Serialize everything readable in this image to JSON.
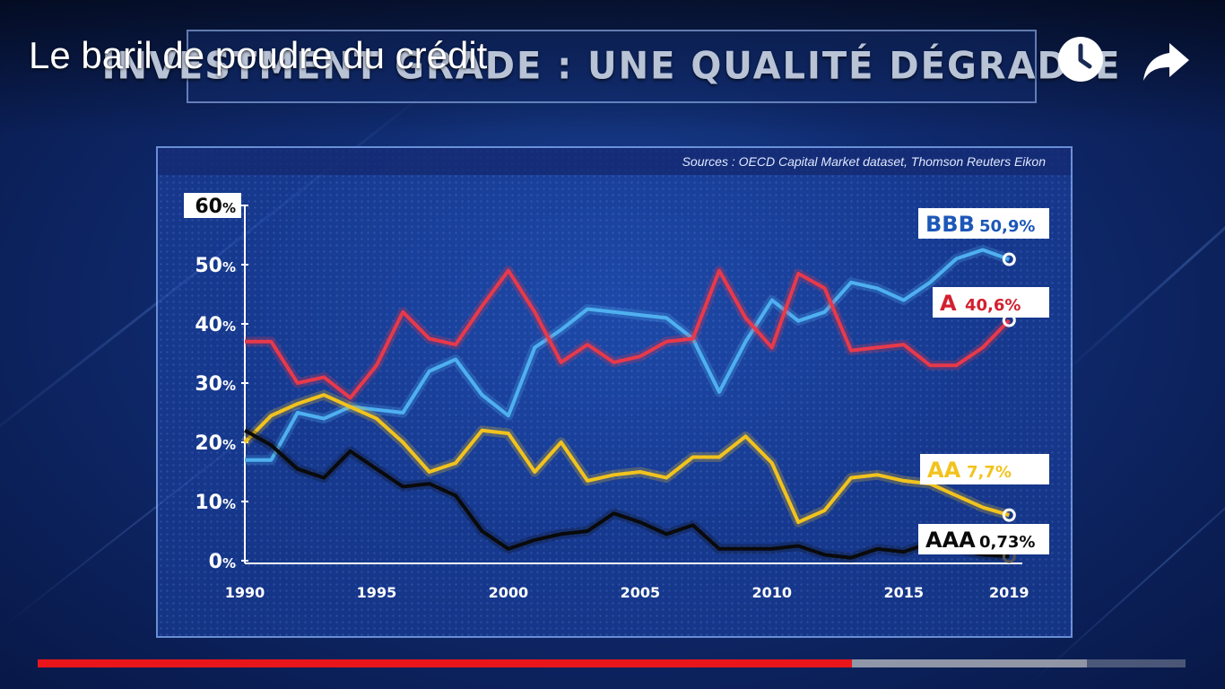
{
  "video": {
    "title": "Le baril de poudre du crédit",
    "watch_later_icon": "clock-icon",
    "share_icon": "share-arrow-icon",
    "progress_played": 0.709,
    "progress_buffered": 0.914
  },
  "banner": {
    "text": "INVESTMENT GRADE : UNE QUALITÉ DÉGRADÉE"
  },
  "chart_data": {
    "type": "line",
    "title": "",
    "sources": "Sources : OECD Capital Market dataset, Thomson Reuters Eikon",
    "xlabel": "",
    "ylabel": "",
    "xlim": [
      1990,
      2019.5
    ],
    "ylim": [
      0,
      60
    ],
    "x_ticks": [
      1990,
      1995,
      2000,
      2005,
      2010,
      2015,
      2019
    ],
    "y_ticks": [
      0,
      10,
      20,
      30,
      40,
      50,
      60
    ],
    "y_tick_unit": "%",
    "grid": false,
    "x": [
      1990,
      1991,
      1992,
      1993,
      1994,
      1995,
      1996,
      1997,
      1998,
      1999,
      2000,
      2001,
      2002,
      2003,
      2004,
      2005,
      2006,
      2007,
      2008,
      2009,
      2010,
      2011,
      2012,
      2013,
      2014,
      2015,
      2016,
      2017,
      2018,
      2019
    ],
    "series": [
      {
        "name": "BBB",
        "label_value": "50,9%",
        "color": "#4fb0f0",
        "label_bg": "#ffffff",
        "label_color": "#1d57b8",
        "values": [
          17,
          17,
          25,
          24,
          26,
          25.5,
          25,
          32,
          34,
          28,
          24.5,
          36,
          39,
          42.5,
          42,
          41.5,
          41,
          37.5,
          28.5,
          37,
          44,
          40.5,
          42,
          47,
          46,
          44,
          47,
          51,
          52.5,
          50.9
        ]
      },
      {
        "name": "A",
        "label_value": "40,6%",
        "color": "#e8394a",
        "label_bg": "#ffffff",
        "label_color": "#d3202f",
        "values": [
          37,
          37,
          30,
          31,
          27.5,
          33,
          42,
          37.5,
          36.5,
          43,
          49,
          42,
          33.5,
          36.5,
          33.5,
          34.5,
          37,
          37.5,
          49,
          41,
          36,
          48.5,
          46,
          35.5,
          36,
          36.5,
          33,
          33,
          36,
          40.6
        ]
      },
      {
        "name": "AA",
        "label_value": "7,7%",
        "color": "#f2c31d",
        "label_bg": "#ffffff",
        "label_color": "#f2c31d",
        "values": [
          20,
          24.5,
          26.5,
          28,
          26,
          24,
          20,
          15,
          16.5,
          22,
          21.5,
          15,
          20,
          13.5,
          14.5,
          15,
          14,
          17.5,
          17.5,
          21,
          16.5,
          6.5,
          8.5,
          14,
          14.5,
          13.5,
          13,
          11,
          9,
          7.7
        ]
      },
      {
        "name": "AAA",
        "label_value": "0,73%",
        "color": "#0a0a0a",
        "label_bg": "#ffffff",
        "label_color": "#0a0a0a",
        "values": [
          22,
          19.5,
          15.5,
          14,
          18.5,
          15.5,
          12.5,
          13,
          11,
          5,
          2,
          3.5,
          4.5,
          5,
          8,
          6.5,
          4.5,
          6,
          2,
          2,
          2,
          2.5,
          1,
          0.5,
          2,
          1.5,
          3,
          2,
          1,
          0.73
        ]
      }
    ]
  }
}
